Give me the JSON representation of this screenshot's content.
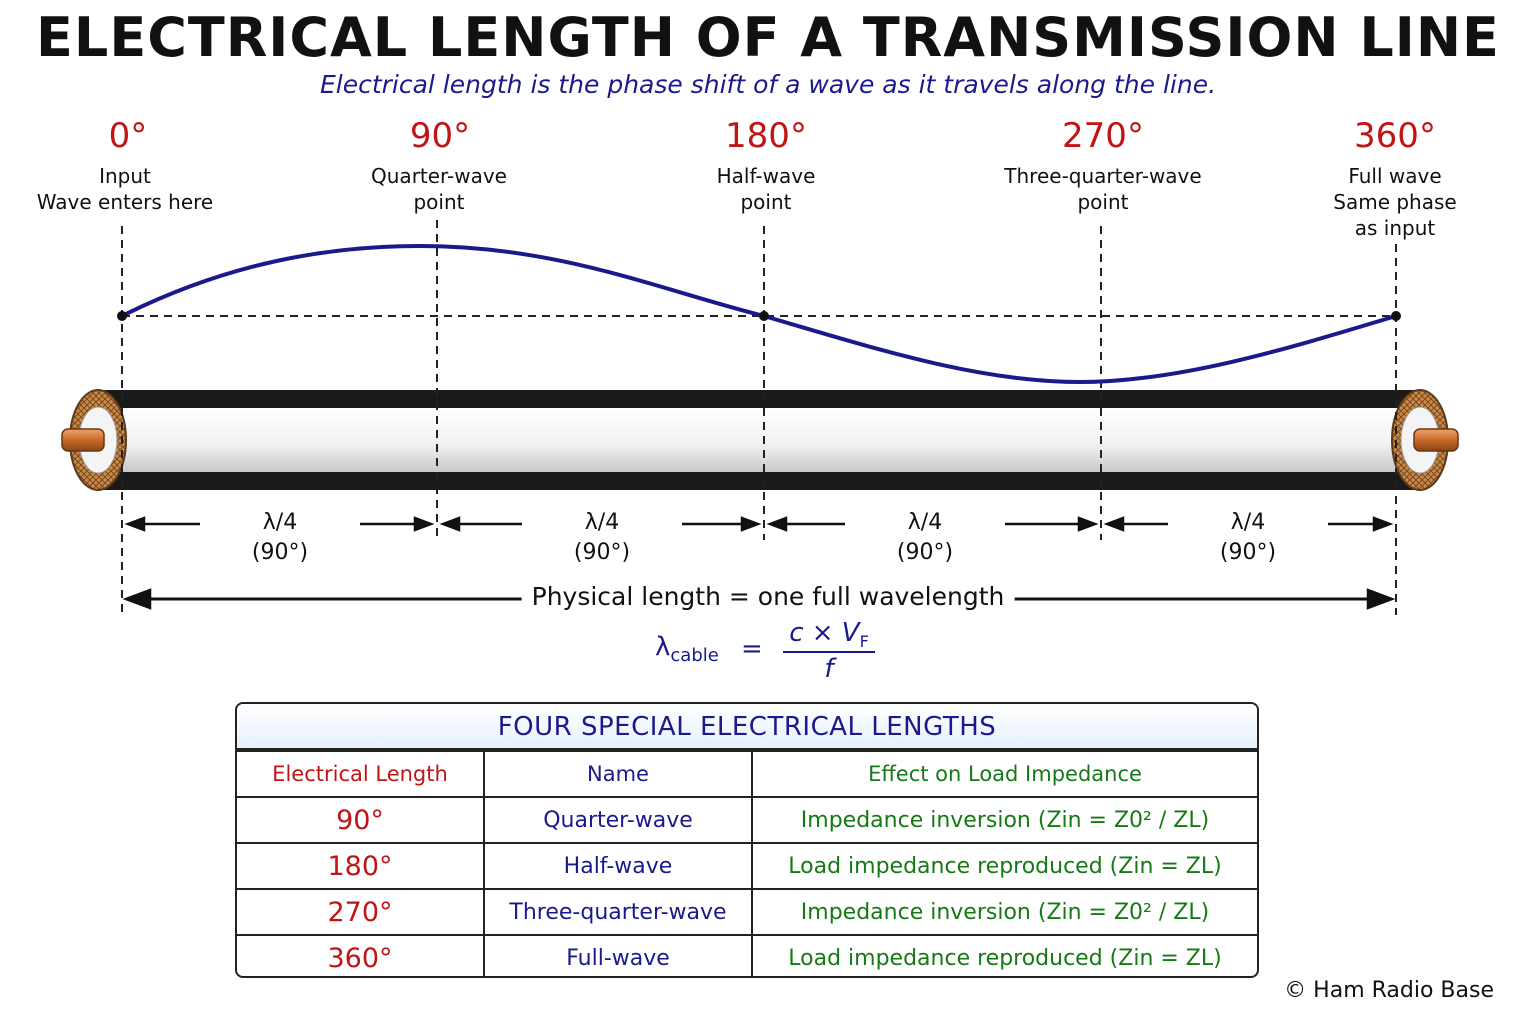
{
  "title": "ELECTRICAL LENGTH OF A TRANSMISSION LINE",
  "subtitle": "Electrical length is the phase shift of a wave as it travels along the line.",
  "markers": [
    {
      "degree": "0°",
      "lines": [
        "Input",
        "Wave enters here"
      ]
    },
    {
      "degree": "90°",
      "lines": [
        "Quarter-wave",
        "point"
      ]
    },
    {
      "degree": "180°",
      "lines": [
        "Half-wave",
        "point"
      ]
    },
    {
      "degree": "270°",
      "lines": [
        "Three-quarter-wave",
        "point"
      ]
    },
    {
      "degree": "360°",
      "lines": [
        "Full wave",
        "Same phase",
        "as input"
      ]
    }
  ],
  "segments": [
    {
      "fraction": "λ/4",
      "phase": "(90°)"
    },
    {
      "fraction": "λ/4",
      "phase": "(90°)"
    },
    {
      "fraction": "λ/4",
      "phase": "(90°)"
    },
    {
      "fraction": "λ/4",
      "phase": "(90°)"
    }
  ],
  "physical_length": "Physical length = one full wavelength",
  "formula": {
    "lhs": "λ",
    "lhs_sub": "cable",
    "equals": "=",
    "num": "c × V",
    "num_sub": "F",
    "den": "f"
  },
  "table": {
    "title": "FOUR SPECIAL ELECTRICAL LENGTHS",
    "headers": [
      "Electrical Length",
      "Name",
      "Effect on Load Impedance"
    ],
    "rows": [
      {
        "length": "90°",
        "name": "Quarter-wave",
        "effect": "Impedance inversion (Zin = Z0² / ZL)"
      },
      {
        "length": "180°",
        "name": "Half-wave",
        "effect": "Load impedance reproduced (Zin = ZL)"
      },
      {
        "length": "270°",
        "name": "Three-quarter-wave",
        "effect": "Impedance inversion (Zin = Z0² / ZL)"
      },
      {
        "length": "360°",
        "name": "Full-wave",
        "effect": "Load impedance reproduced (Zin = ZL)"
      }
    ]
  },
  "copyright": "© Ham Radio Base",
  "colors": {
    "accent_red": "#c01515",
    "accent_blue": "#1a1a8c",
    "accent_green": "#157a15",
    "copper": "#c87533"
  }
}
